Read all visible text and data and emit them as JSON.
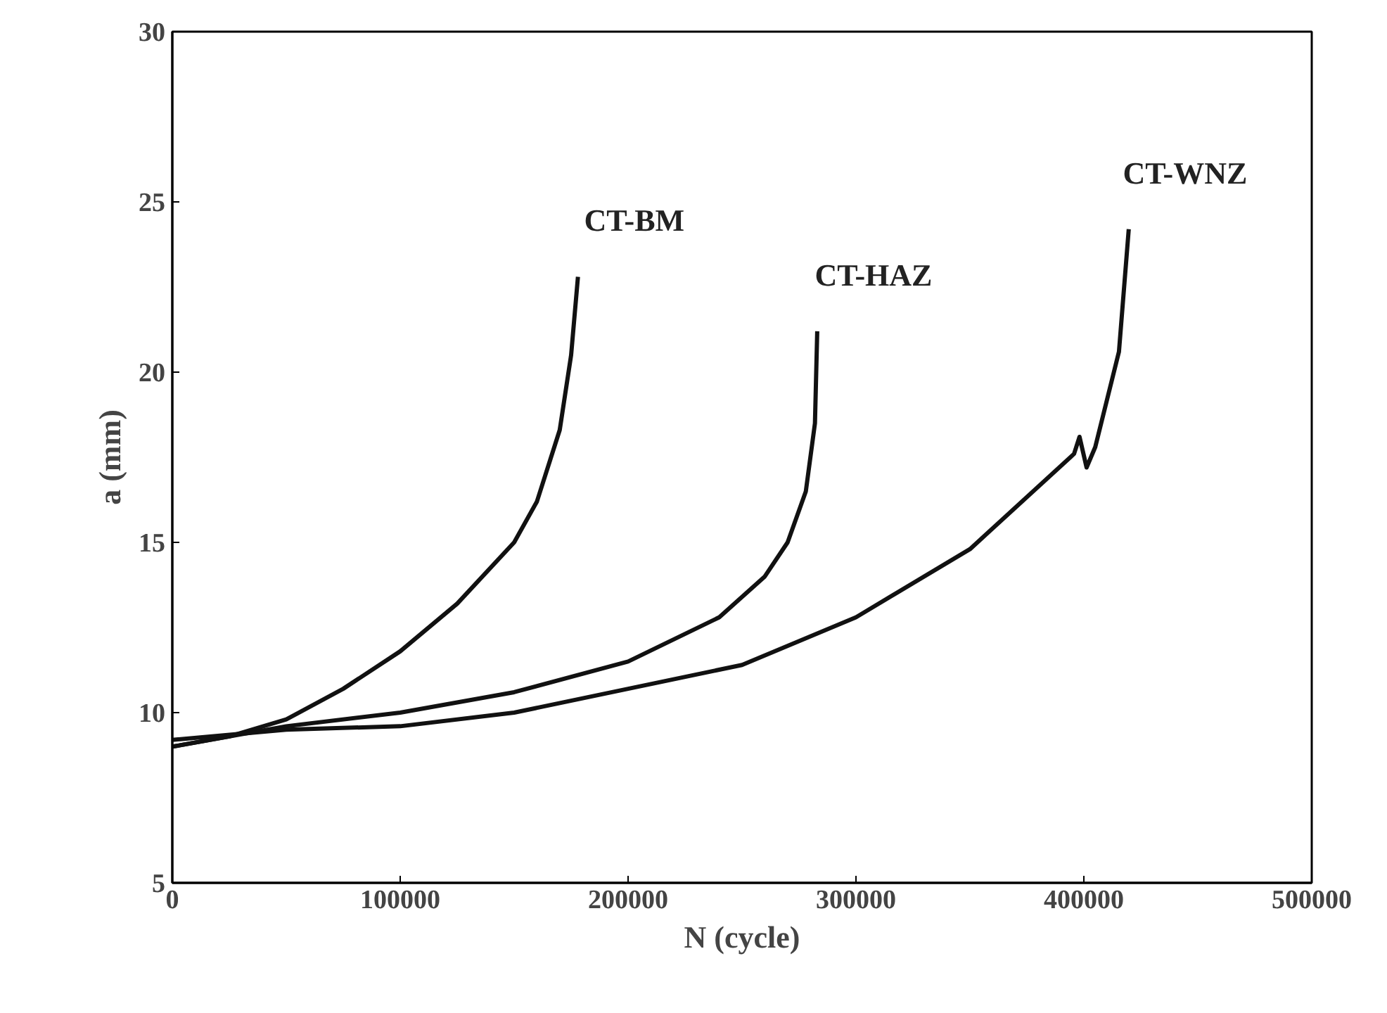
{
  "chart_data": {
    "type": "line",
    "xlabel": "N (cycle)",
    "ylabel": "a (mm)",
    "xlim": [
      0,
      500000
    ],
    "ylim": [
      5,
      30
    ],
    "xticks": [
      0,
      100000,
      200000,
      300000,
      400000,
      500000
    ],
    "yticks": [
      5,
      10,
      15,
      20,
      25,
      30
    ],
    "grid": false,
    "legend": false,
    "marker": "none",
    "line_style": "solid",
    "series": [
      {
        "name": "CT-BM",
        "color": "#111111",
        "x": [
          0,
          25000,
          50000,
          75000,
          100000,
          125000,
          150000,
          160000,
          170000,
          175000,
          178000
        ],
        "values": [
          9.0,
          9.3,
          9.8,
          10.7,
          11.8,
          13.2,
          15.0,
          16.2,
          18.3,
          20.5,
          22.8
        ]
      },
      {
        "name": "CT-HAZ",
        "color": "#111111",
        "x": [
          0,
          50000,
          100000,
          150000,
          200000,
          240000,
          260000,
          270000,
          278000,
          282000,
          283000
        ],
        "values": [
          9.0,
          9.6,
          10.0,
          10.6,
          11.5,
          12.8,
          14.0,
          15.0,
          16.5,
          18.5,
          21.2
        ]
      },
      {
        "name": "CT-WNZ",
        "color": "#111111",
        "x": [
          0,
          50000,
          100000,
          150000,
          200000,
          250000,
          300000,
          350000,
          395700,
          398100,
          401200,
          405000,
          415400,
          419700
        ],
        "values": [
          9.2,
          9.5,
          9.6,
          10.0,
          10.7,
          11.4,
          12.8,
          14.8,
          17.6,
          18.1,
          17.2,
          17.8,
          20.6,
          24.2
        ]
      }
    ]
  }
}
